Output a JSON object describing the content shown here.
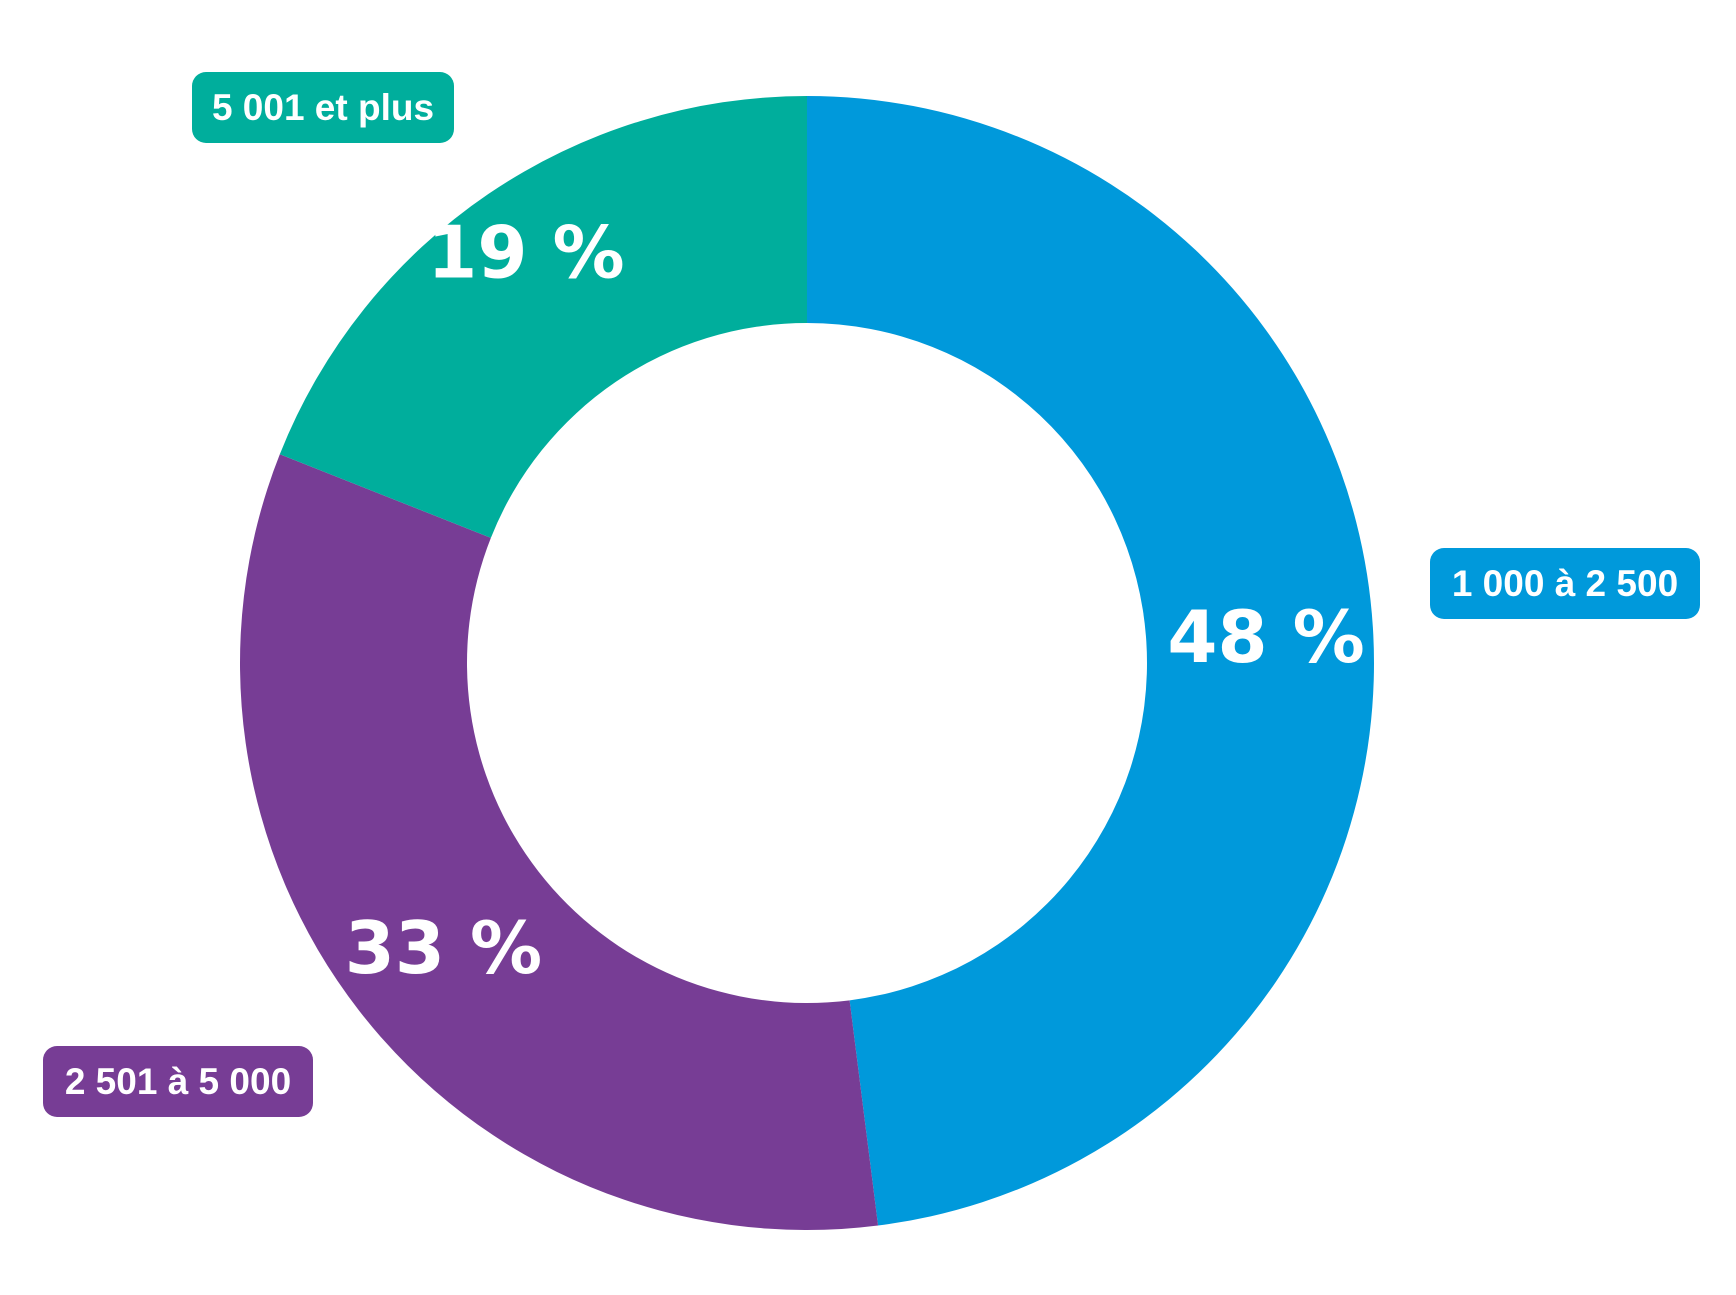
{
  "chart_data": {
    "type": "pie",
    "donut": true,
    "title": "",
    "categories": [
      "5 001 et plus",
      "1 000 à 2 500",
      "2 501 à 5 000"
    ],
    "values": [
      19,
      48,
      33
    ],
    "value_labels": [
      "19 %",
      "48 %",
      "33 %"
    ],
    "colors": [
      "#00ae9c",
      "#0099db",
      "#773d95"
    ],
    "start": "top, clockwise from the 1 000 à 2 500 slice",
    "legend": "labels beside each slice"
  }
}
